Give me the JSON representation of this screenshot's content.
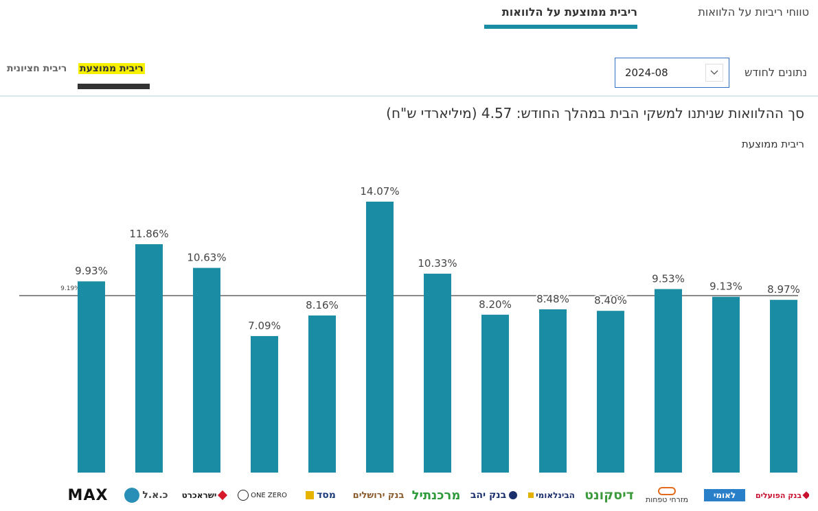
{
  "tabs": {
    "active": "ריבית ממוצעת על הלוואות",
    "other": "טווחי ריביות על הלוואות"
  },
  "sub_tabs": {
    "average": "ריבית ממוצעת",
    "marginal": "ריבית חציונית"
  },
  "month_selector": {
    "label": "נתונים לחודש",
    "value": "2024-08"
  },
  "summary_title": "סך ההלוואות שניתנו למשקי הבית במהלך החודש: 4.57 (מיליארדי ש\"ח)",
  "colors": {
    "bar": "#1a8ca3",
    "highlight": "#f6f000",
    "avg_line": "#8a8a8a"
  },
  "chart_data": {
    "type": "bar",
    "title": "ריבית ממוצעת",
    "ylabel": "",
    "xlabel": "",
    "ylim": [
      0,
      14.07
    ],
    "average": {
      "label": "ממוצע: 9.19%",
      "value": 9.19
    },
    "categories": [
      "MAX",
      "כ.א.ל",
      "ישראכרט",
      "ONE ZERO",
      "מסד",
      "בנק ירושלים",
      "מרכנתיל",
      "בנק יהב",
      "הבינלאומי",
      "דיסקונט",
      "מזרחי טפחות",
      "לאומי",
      "בנק הפועלים"
    ],
    "values": [
      9.93,
      11.86,
      10.63,
      7.09,
      8.16,
      14.07,
      10.33,
      8.2,
      8.48,
      8.4,
      9.53,
      9.13,
      8.97
    ],
    "labels": [
      "9.93%",
      "11.86%",
      "10.63%",
      "7.09%",
      "8.16%",
      "14.07%",
      "10.33%",
      "8.20%",
      "8.48%",
      "8.40%",
      "9.53%",
      "9.13%",
      "8.97%"
    ]
  }
}
